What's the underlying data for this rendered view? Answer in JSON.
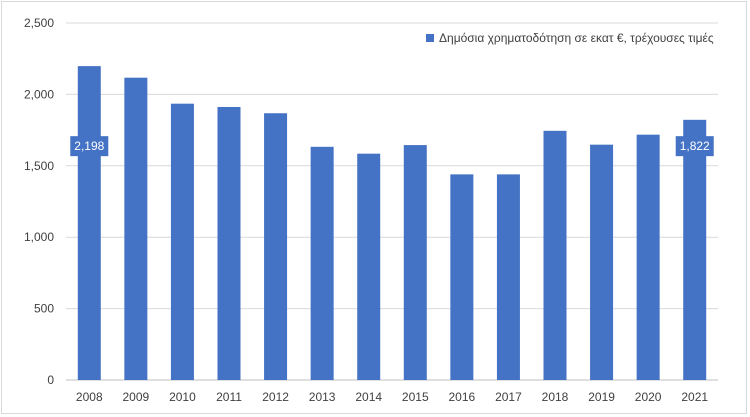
{
  "chart_data": {
    "type": "bar",
    "categories": [
      "2008",
      "2009",
      "2010",
      "2011",
      "2012",
      "2013",
      "2014",
      "2015",
      "2016",
      "2017",
      "2018",
      "2019",
      "2020",
      "2021"
    ],
    "series": [
      {
        "name": "Δημόσια χρηματοδότηση σε εκατ €, τρέχουσες τιμές",
        "color": "#4472c4",
        "values": [
          2198,
          2117,
          1935,
          1912,
          1868,
          1633,
          1585,
          1645,
          1440,
          1440,
          1745,
          1648,
          1718,
          1822
        ]
      }
    ],
    "y_ticks": [
      "0",
      "500",
      "1,000",
      "1,500",
      "2,000",
      "2,500"
    ],
    "ylim": [
      0,
      2500
    ],
    "grid": true,
    "legend_position": "top-right",
    "data_labels": [
      {
        "category": "2008",
        "text": "2,198"
      },
      {
        "category": "2021",
        "text": "1,822"
      }
    ]
  }
}
